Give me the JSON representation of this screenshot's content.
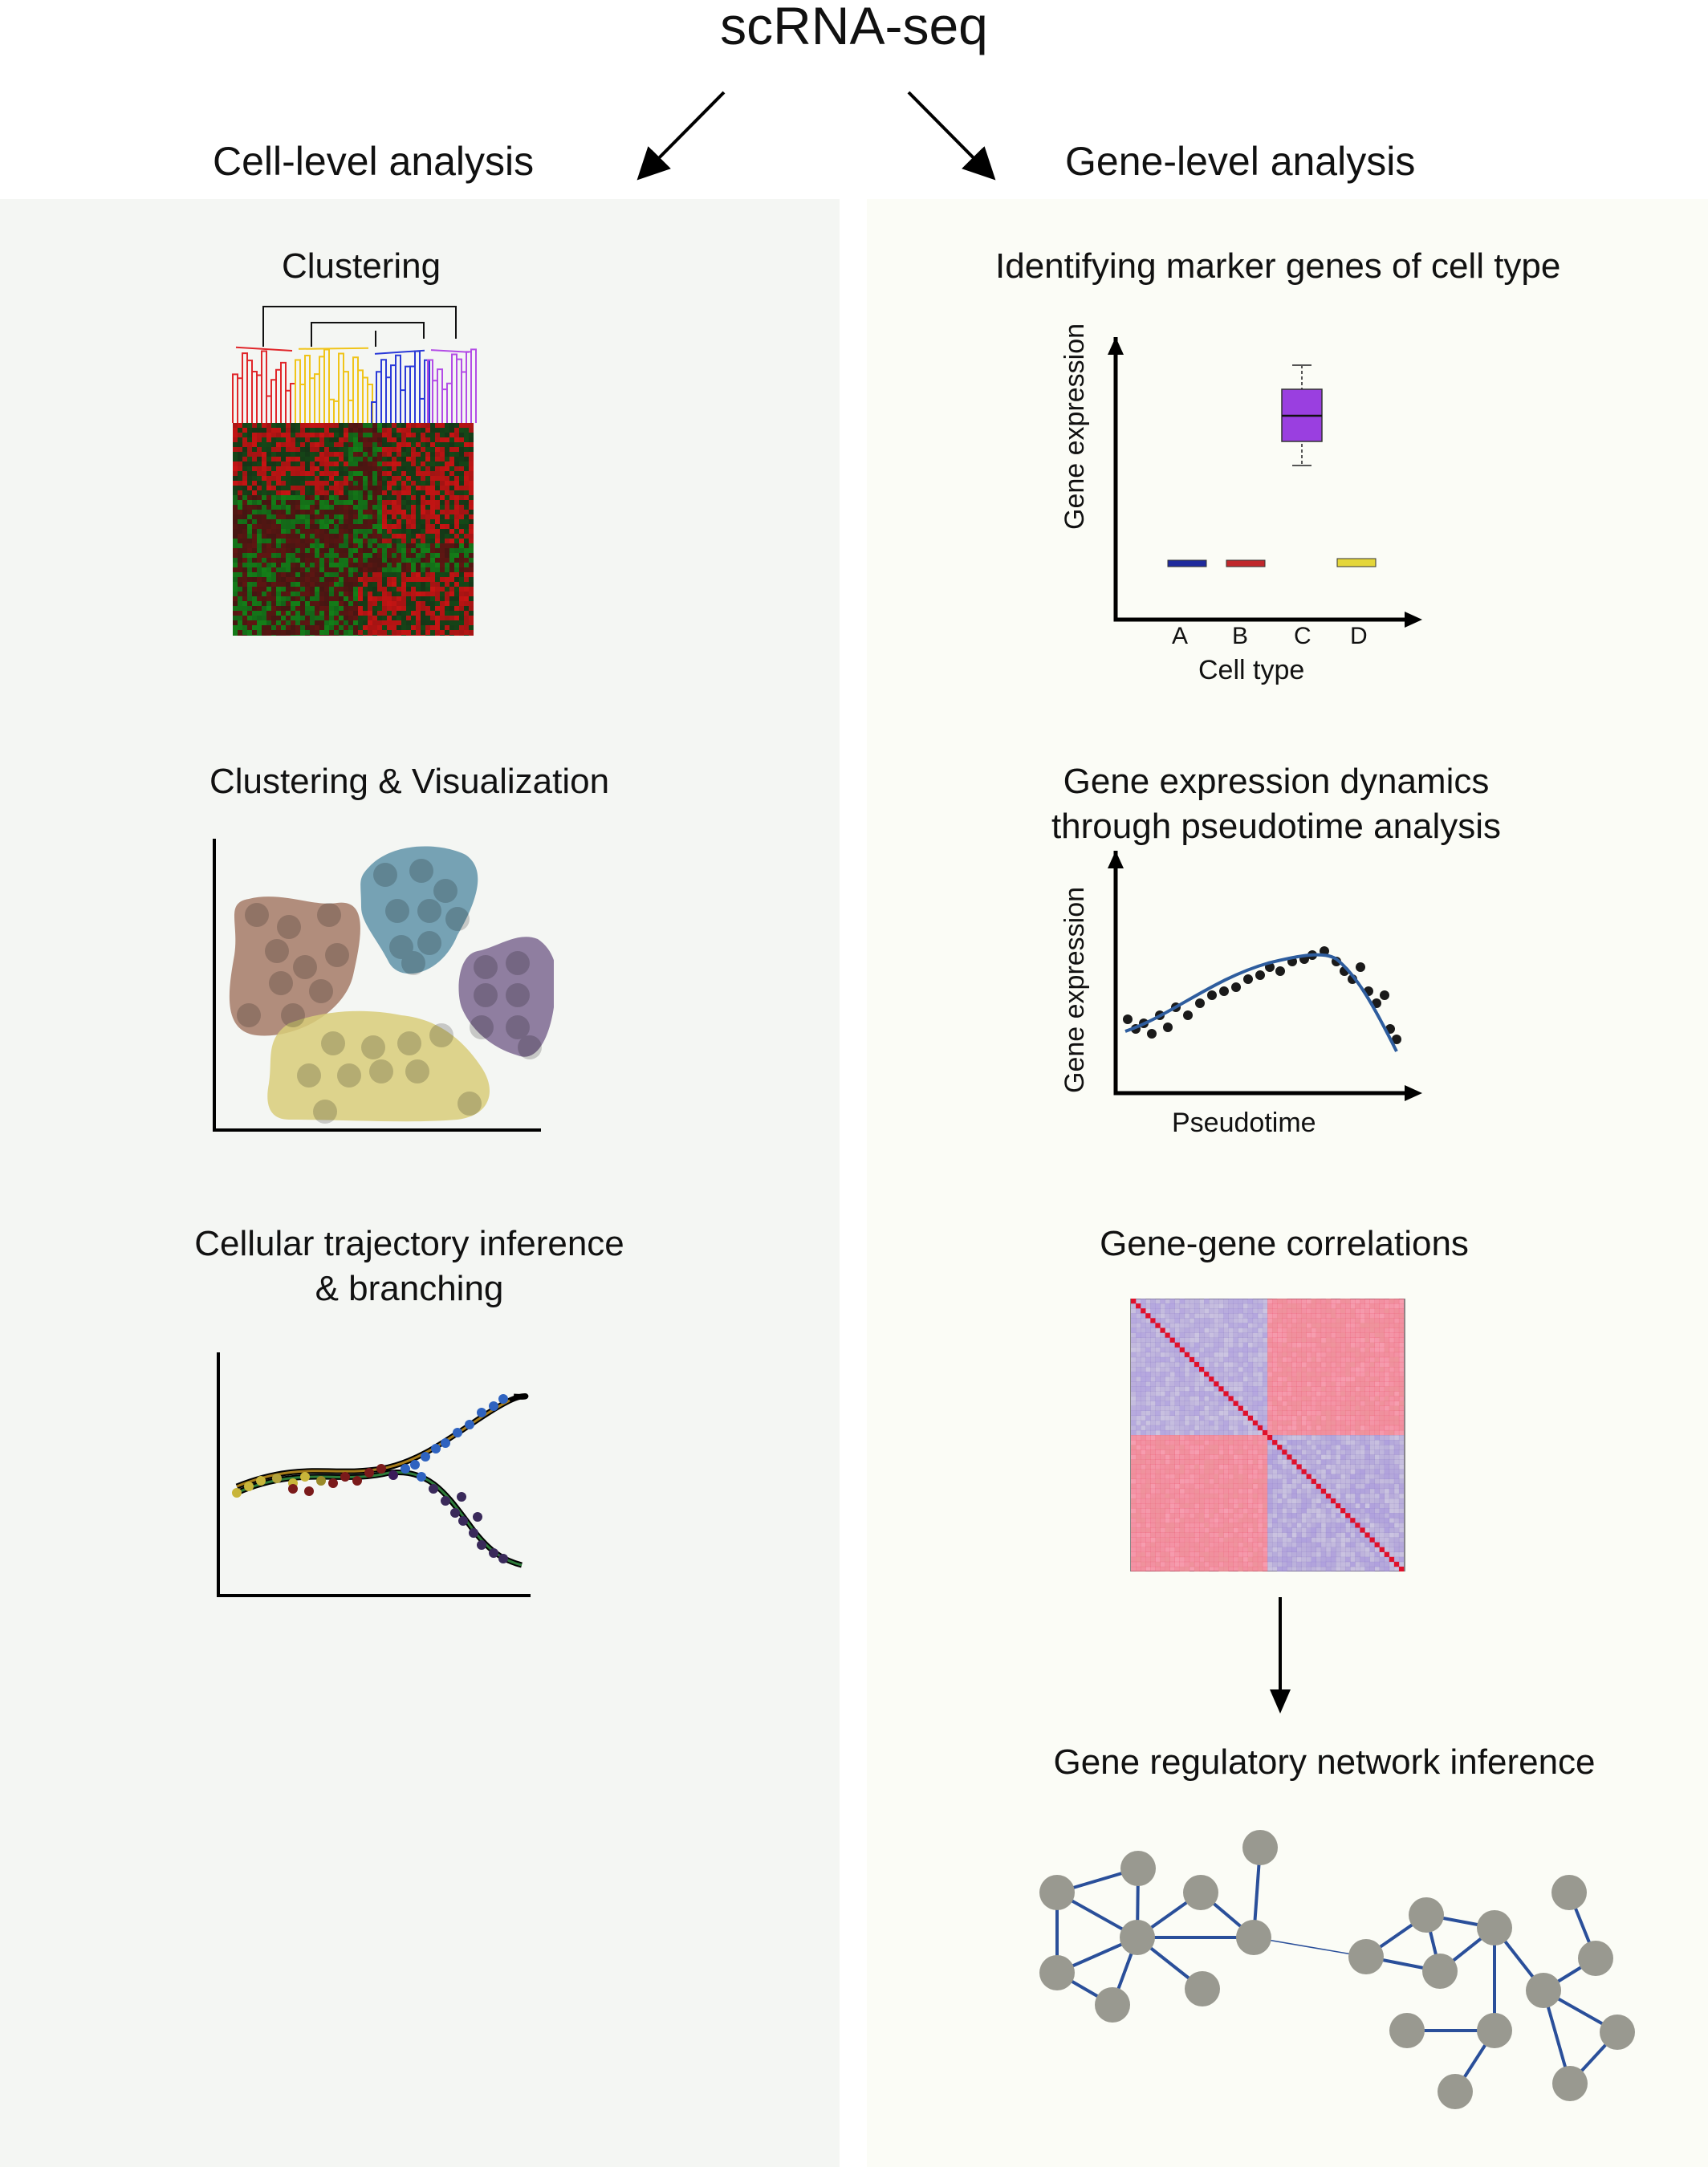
{
  "title": "scRNA-seq",
  "left": {
    "heading": "Cell-level analysis",
    "sections": [
      "Clustering",
      "Clustering & Visualization",
      "Cellular trajectory inference",
      "& branching"
    ]
  },
  "right": {
    "heading": "Gene-level analysis",
    "markers": {
      "title": "Identifying marker genes of cell type",
      "ylabel": "Gene expression",
      "xlabel": "Cell type",
      "categories": [
        "A",
        "B",
        "C",
        "D"
      ]
    },
    "dynamics": {
      "title_line1": "Gene expression dynamics",
      "title_line2": "through pseudotime analysis",
      "ylabel": "Gene expression",
      "xlabel": "Pseudotime"
    },
    "correlations": {
      "title": "Gene-gene correlations"
    },
    "network": {
      "title": "Gene regulatory network inference"
    }
  },
  "colors": {
    "left_bg": "#f4f6f3",
    "right_bg": "#fbfcf6",
    "box_A": "#1f2a9c",
    "box_B": "#c0282c",
    "box_C": "#9a3fe0",
    "box_D": "#e4d63a",
    "cluster_brown": "#a57a66",
    "cluster_blue": "#5f93a8",
    "cluster_purple": "#7d6890",
    "cluster_yellow": "#d8cd79",
    "network_node": "#999990",
    "network_edge": "#2a4f9a"
  },
  "chart_data": {
    "type": "box",
    "categories": [
      "A",
      "B",
      "C",
      "D"
    ],
    "title": "Identifying marker genes of cell type",
    "xlabel": "Cell type",
    "ylabel": "Gene expression"
  }
}
